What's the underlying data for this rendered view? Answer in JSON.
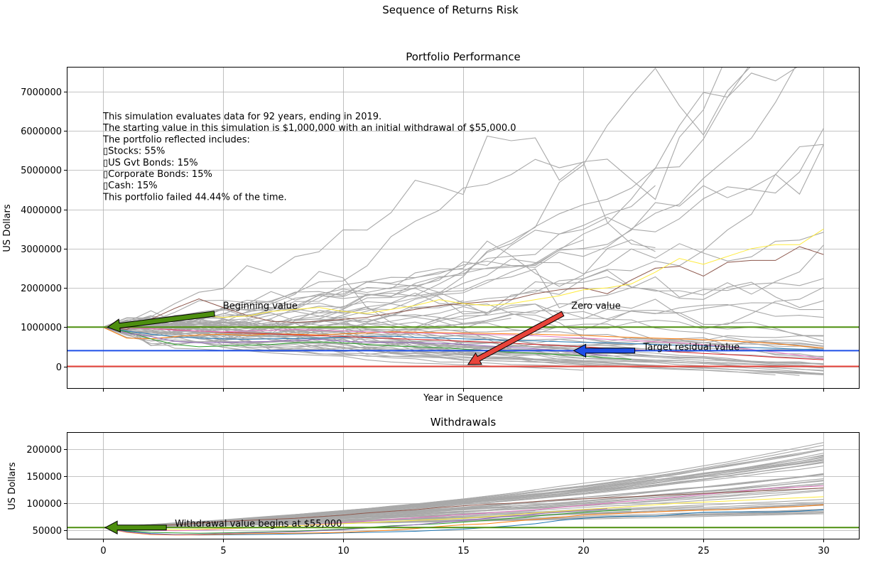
{
  "suptitle": "Sequence of Returns Risk",
  "chart_data": [
    {
      "type": "line",
      "title": "Portfolio Performance",
      "xlabel": "Year in Sequence",
      "ylabel": "US Dollars",
      "xlim": [
        -1.5,
        31.5
      ],
      "ylim": [
        -570000,
        7630000
      ],
      "xticks": [
        0,
        5,
        10,
        15,
        20,
        25,
        30
      ],
      "yticks": [
        0,
        1000000,
        2000000,
        3000000,
        4000000,
        5000000,
        6000000,
        7000000
      ],
      "ytick_labels": [
        "0",
        "1000000",
        "2000000",
        "3000000",
        "4000000",
        "5000000",
        "6000000",
        "7000000"
      ],
      "grid": true,
      "hlines": [
        {
          "name": "beginning-value-line",
          "y": 1000000,
          "color": "#4d8f0f"
        },
        {
          "name": "target-residual-line",
          "y": 400000,
          "color": "#1f4fe8"
        },
        {
          "name": "zero-value-line",
          "y": 0,
          "color": "#e8433a"
        }
      ],
      "info_text": [
        "This simulation evaluates data for 92 years, ending in 2019.",
        "The starting value in this simulation is $1,000,000 with an initial withdrawal of $55,000.0",
        "The portfolio reflected includes:",
        "▯Stocks:  55%",
        "▯US Gvt Bonds:  15%",
        "▯Corporate Bonds:  15%",
        "▯Cash:  15%",
        "This portfolio failed 44.44% of the time."
      ],
      "annotations": [
        {
          "name": "beginning-value",
          "text": "Beginning value",
          "xy": [
            0.2,
            1000000
          ],
          "xytext": [
            5,
            1450000
          ],
          "color": "#4d8f0f"
        },
        {
          "name": "zero-value",
          "text": "Zero value",
          "xy": [
            15.2,
            50000
          ],
          "xytext": [
            19.5,
            1450000
          ],
          "color": "#e8433a"
        },
        {
          "name": "target-residual-value",
          "text": "Target residual value",
          "xy": [
            19.6,
            400000
          ],
          "xytext": [
            22.5,
            400000
          ],
          "color": "#1f4fe8"
        }
      ],
      "series_colored": [
        {
          "color": "#1f77b4",
          "values": [
            1000000,
            900000,
            820000,
            760000,
            720000,
            700000,
            690000,
            700000,
            710000,
            720000,
            740000,
            760000,
            770000,
            740000,
            720000,
            700000,
            680000,
            660000,
            650000,
            630000,
            610000,
            600000,
            580000,
            560000,
            540000,
            520000,
            500000,
            480000,
            460000,
            440000,
            420000
          ]
        },
        {
          "color": "#ff7f0e",
          "values": [
            1000000,
            720000,
            700000,
            760000,
            800000,
            820000,
            790000,
            830000,
            820000,
            800000,
            830000,
            850000,
            880000,
            870000,
            860000,
            850000,
            840000,
            830000,
            820000,
            800000,
            790000,
            760000,
            740000,
            720000,
            700000,
            680000,
            650000,
            620000,
            580000,
            520000,
            470000
          ]
        },
        {
          "color": "#2ca02c",
          "values": [
            1000000,
            880000,
            700000,
            560000,
            500000,
            520000,
            540000,
            560000,
            600000,
            620000,
            600000,
            560000,
            520000,
            500000,
            480000,
            440000,
            400000,
            360000,
            330000,
            300000,
            260000,
            220000,
            180000
          ]
        },
        {
          "color": "#d62728",
          "values": [
            1000000,
            980000,
            960000,
            930000,
            900000,
            870000,
            850000,
            830000,
            800000,
            780000,
            760000,
            740000,
            710000,
            690000,
            670000,
            640000,
            620000,
            590000,
            560000,
            530000,
            500000,
            460000,
            430000,
            400000,
            370000,
            330000,
            300000,
            270000,
            230000,
            200000,
            170000
          ]
        },
        {
          "color": "#9467bd",
          "values": [
            1000000,
            850000,
            760000,
            640000,
            600000,
            610000,
            620000,
            640000,
            660000,
            690000,
            640000,
            620000,
            610000,
            600000,
            590000,
            560000,
            520000,
            490000,
            450000,
            400000,
            340000,
            280000
          ]
        },
        {
          "color": "#8c564b",
          "values": [
            1000000,
            940000,
            1200000,
            1480000,
            1720000,
            1500000,
            1300000,
            1150000,
            1120000,
            1150000,
            1200000,
            1250000,
            1350000,
            1450000,
            1550000,
            1600000,
            1650000,
            1700000,
            1850000,
            1950000,
            2000000,
            1850000,
            2200000,
            2500000,
            2550000,
            2300000,
            2650000,
            2700000,
            2700000,
            3050000,
            2850000
          ]
        },
        {
          "color": "#e377c2",
          "values": [
            1000000,
            980000,
            960000,
            920000,
            900000,
            880000,
            900000,
            920000,
            940000,
            920000,
            900000,
            880000,
            860000,
            850000,
            840000,
            830000,
            810000,
            800000,
            780000,
            750000,
            720000,
            690000,
            660000,
            630000,
            600000,
            550000,
            500000,
            430000,
            360000,
            280000,
            200000
          ]
        },
        {
          "color": "#ffeb3b",
          "values": [
            1000000,
            1050000,
            1100000,
            1200000,
            1300000,
            1250000,
            1280000,
            1400000,
            1450000,
            1500000,
            1400000,
            1350000,
            1450000,
            1550000,
            1700000,
            1600000,
            1550000,
            1600000,
            1700000,
            1800000,
            1950000,
            2000000,
            2100000,
            2400000,
            2750000,
            2600000,
            2800000,
            3000000,
            3100000,
            3100000,
            3500000
          ]
        }
      ],
      "series_gray_count": 60
    },
    {
      "type": "line",
      "title": "Withdrawals",
      "ylabel": "US Dollars",
      "xlim": [
        -1.5,
        31.5
      ],
      "ylim": [
        32900,
        231600
      ],
      "xticks": [
        0,
        5,
        10,
        15,
        20,
        25,
        30
      ],
      "xtick_labels": [
        "0",
        "5",
        "10",
        "15",
        "20",
        "25",
        "30"
      ],
      "yticks": [
        50000,
        100000,
        150000,
        200000
      ],
      "ytick_labels": [
        "50000",
        "100000",
        "150000",
        "200000"
      ],
      "grid": true,
      "hlines": [
        {
          "name": "initial-withdrawal-line",
          "y": 55000,
          "color": "#4d8f0f"
        }
      ],
      "annotations": [
        {
          "name": "withdrawal-begins",
          "text": "Withdrawal value begins at $55,000",
          "xy": [
            0.1,
            55000
          ],
          "xytext": [
            3,
            55000
          ],
          "color": "#4d8f0f"
        }
      ],
      "series_colored": [
        {
          "color": "#1f77b4",
          "values": [
            55000,
            48000,
            44000,
            42000,
            41000,
            41500,
            42000,
            42500,
            43000,
            44000,
            45000,
            46000,
            47000,
            48000,
            50000,
            52000,
            55000,
            58000,
            62000,
            68000,
            72000,
            75000,
            76000,
            76000,
            80000,
            83000,
            84000,
            84000,
            84000,
            85000,
            88000
          ]
        },
        {
          "color": "#ff7f0e",
          "values": [
            55000,
            46000,
            42000,
            41000,
            41500,
            42500,
            43500,
            44000,
            44500,
            45000,
            46000,
            48000,
            50000,
            53000,
            57000,
            60000,
            62000,
            66000,
            70000,
            74000,
            78000,
            80000,
            82000,
            84000,
            86000,
            87000,
            88000,
            90000,
            92000,
            94000,
            97000
          ]
        },
        {
          "color": "#2ca02c",
          "values": [
            55000,
            49000,
            46000,
            45000,
            44500,
            45000,
            46000,
            47000,
            48000,
            50000,
            52000,
            55000,
            58000,
            60000,
            62000,
            65000,
            68000,
            72000,
            76000,
            80000,
            83000,
            86000,
            88000
          ]
        },
        {
          "color": "#9467bd",
          "values": [
            55000,
            47000,
            43000,
            42000,
            42500,
            44000,
            45000,
            46000,
            47000,
            49000,
            51000,
            54000,
            57000,
            60000,
            64000,
            68000,
            72000,
            76000,
            80000,
            84000,
            87000,
            90000
          ]
        },
        {
          "color": "#e377c2",
          "values": [
            55000,
            52000,
            50000,
            49000,
            50000,
            52000,
            54000,
            56000,
            58000,
            61000,
            64000,
            67000,
            70000,
            73000,
            76000,
            79000,
            82000,
            85000,
            88000,
            92000,
            96000,
            100000,
            104000,
            108000,
            112000,
            116000,
            120000,
            124000,
            128000,
            130000,
            132000
          ]
        },
        {
          "color": "#ffeb3b",
          "values": [
            55000,
            52000,
            51000,
            51000,
            52000,
            53000,
            54000,
            56000,
            58000,
            60000,
            62000,
            64000,
            66000,
            68000,
            70000,
            72000,
            75000,
            78000,
            82000,
            85000,
            88000,
            91000,
            94000,
            97000,
            100000,
            102000,
            104000,
            106000,
            108000,
            110000,
            112000
          ]
        },
        {
          "color": "#8c564b",
          "values": [
            55000,
            56000,
            58000,
            60000,
            63000,
            66000,
            68000,
            70000,
            72000,
            75000,
            78000,
            82000,
            85000,
            88000,
            92000,
            95000,
            98000,
            100000,
            103000,
            106000,
            108000,
            110000,
            112000,
            114000,
            116000,
            118000,
            120000,
            122000,
            124000,
            126000,
            128000
          ]
        }
      ],
      "series_gray_count": 60
    }
  ]
}
